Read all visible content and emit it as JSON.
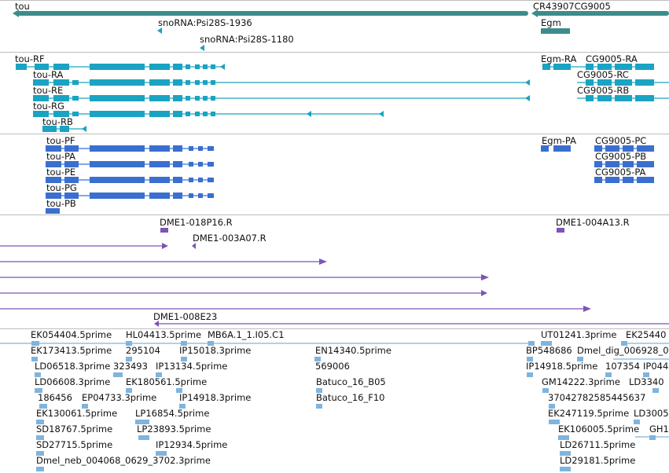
{
  "colors": {
    "gene": "#3d8c8c",
    "transcript": "#1aa3c2",
    "protein": "#3a6fd0",
    "clone": "#7d55b5",
    "est": "#7fb4dd",
    "divider": "#bdbdbd"
  },
  "gene_track": {
    "gene_tou": "tou",
    "gene_cr_cg": "CR43907CG9005",
    "gene_egm": "Egm",
    "snorna_1": "snoRNA:Psi28S-1936",
    "snorna_2": "snoRNA:Psi28S-1180"
  },
  "transcript_track": {
    "tou_rf": "tou-RF",
    "tou_ra": "tou-RA",
    "tou_re": "tou-RE",
    "tou_rg": "tou-RG",
    "tou_rb": "tou-RB",
    "egm_ra": "Egm-RA",
    "cg9005_ra": "CG9005-RA",
    "cg9005_rc": "CG9005-RC",
    "cg9005_rb": "CG9005-RB"
  },
  "protein_track": {
    "tou_pf": "tou-PF",
    "tou_pa": "tou-PA",
    "tou_pe": "tou-PE",
    "tou_pg": "tou-PG",
    "tou_pb": "tou-PB",
    "egm_pa": "Egm-PA",
    "cg9005_pc": "CG9005-PC",
    "cg9005_pb": "CG9005-PB",
    "cg9005_pa": "CG9005-PA"
  },
  "clone_track": {
    "c1": "DME1-018P16.R",
    "c2": "DME1-004A13.R",
    "c3": "DME1-003A07.R",
    "c4": "DME1-008E23"
  },
  "est_track": {
    "e01": "EK054404.5prime",
    "e02": "HL04413.5prime",
    "e03": "MB6A.1_1.I05.C1",
    "e04": "UT01241.3prime",
    "e05": "EK25440",
    "e06": "EK173413.5prime",
    "e07": "295104",
    "e08": "IP15018.3prime",
    "e09": "EN14340.5prime",
    "e10": "BP548686",
    "e11": "Dmel_dig_006928_0",
    "e12": "LD06518.3prime",
    "e13": "323493",
    "e14": "IP13134.5prime",
    "e15": "569006",
    "e16": "IP14918.5prime",
    "e17": "107354",
    "e18": "IP044",
    "e19": "LD06608.3prime",
    "e20": "EK180561.5prime",
    "e21": "Batuco_16_B05",
    "e22": "GM14222.3prime",
    "e23": "LD3340",
    "e24": "186456",
    "e25": "EP04733.3prime",
    "e26": "IP14918.3prime",
    "e27": "Batuco_16_F10",
    "e28": "37042782585445637",
    "e29": "EK130061.5prime",
    "e30": "LP16854.5prime",
    "e31": "EK247119.5prime",
    "e32": "LD3005",
    "e33": "SD18767.5prime",
    "e34": "LP23893.5prime",
    "e35": "EK106005.5prime",
    "e36": "GH1",
    "e37": "SD27715.5prime",
    "e38": "IP12934.5prime",
    "e39": "LD26711.5prime",
    "e40": "Dmel_neb_004068_0629_3702.3prime",
    "e41": "LD29181.5prime"
  }
}
